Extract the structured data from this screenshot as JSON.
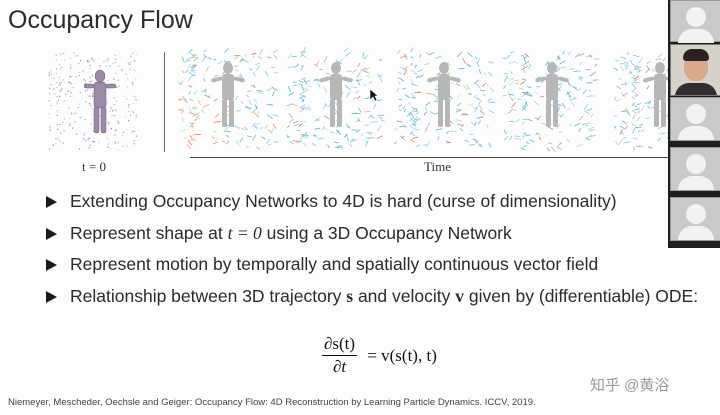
{
  "slide": {
    "title": "Occupancy Flow",
    "t0_label": "t = 0",
    "time_label": "Time",
    "bullets": [
      {
        "pre": "Extending Occupancy Networks to 4D is hard (curse of dimensionality)"
      },
      {
        "pre": "Represent shape at ",
        "math": "t = 0",
        "post": " using a 3D Occupancy Network"
      },
      {
        "pre": "Represent motion by temporally and spatially continuous vector field"
      },
      {
        "pre": "Relationship between 3D trajectory ",
        "s": "s",
        "mid": " and velocity ",
        "v": "v",
        "post": " given by (differentiable) ODE:"
      }
    ],
    "equation": {
      "numerator": "∂s(t)",
      "denominator": "∂t",
      "rhs": "= v(s(t), t)"
    },
    "citation": "Niemeyer, Mescheder, Oechsle and Geiger: Occupancy Flow: 4D Reconstruction by Learning Particle Dynamics. ICCV, 2019.",
    "watermark": "知乎 @黄浴"
  },
  "colors": {
    "flow_warm": "#e65a2a",
    "flow_cool": "#3aa6d8",
    "flow_mid": "#7fc97f"
  },
  "icons": [
    "mouse-cursor-icon",
    "participant-avatar-icon"
  ]
}
